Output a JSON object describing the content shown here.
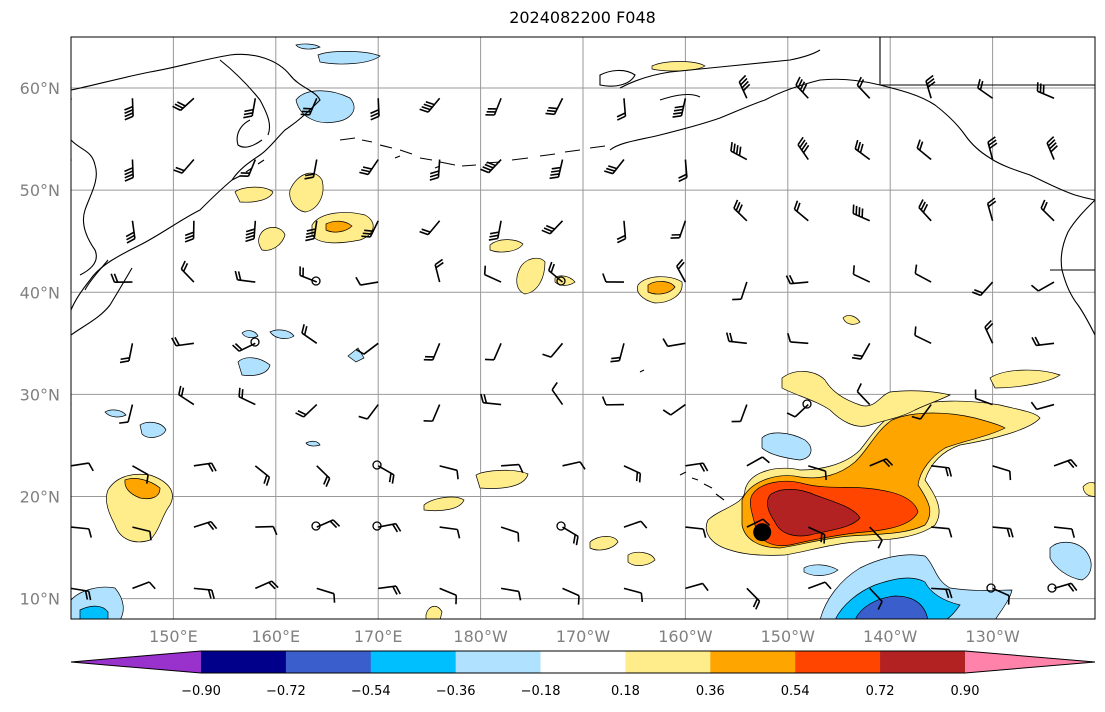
{
  "title": "2024082200 F048",
  "map": {
    "extent": {
      "lon_min": 140,
      "lon_max": 240,
      "lat_min": 8,
      "lat_max": 65
    },
    "projection": "PlateCarree",
    "gridlines": true,
    "coastlines": true,
    "lat_ticks": [
      {
        "value": 10,
        "label": "10°N"
      },
      {
        "value": 20,
        "label": "20°N"
      },
      {
        "value": 30,
        "label": "30°N"
      },
      {
        "value": 40,
        "label": "40°N"
      },
      {
        "value": 50,
        "label": "50°N"
      },
      {
        "value": 60,
        "label": "60°N"
      }
    ],
    "lon_ticks": [
      {
        "value": 150,
        "label": "150°E"
      },
      {
        "value": 160,
        "label": "160°E"
      },
      {
        "value": 170,
        "label": "170°E"
      },
      {
        "value": 180,
        "label": "180°W"
      },
      {
        "value": 190,
        "label": "170°W"
      },
      {
        "value": 200,
        "label": "160°W"
      },
      {
        "value": 210,
        "label": "150°W"
      },
      {
        "value": 220,
        "label": "140°W"
      },
      {
        "value": 230,
        "label": "130°W"
      }
    ],
    "storm_marker": {
      "lon": 207.5,
      "lat": 16.5
    },
    "wind_barbs": "grid of wind barbs every 6 degrees"
  },
  "colorbar": {
    "extend": "both",
    "colors": [
      "#9932cc",
      "#00008b",
      "#3a5fcd",
      "#00bfff",
      "#b0e2ff",
      "#ffffff",
      "#ffec8b",
      "#ffa500",
      "#ff4500",
      "#b22222",
      "#ff82ab"
    ],
    "tick_labels": [
      "−0.90",
      "−0.72",
      "−0.54",
      "−0.36",
      "−0.18",
      "0.18",
      "0.36",
      "0.54",
      "0.72",
      "0.90"
    ]
  }
}
